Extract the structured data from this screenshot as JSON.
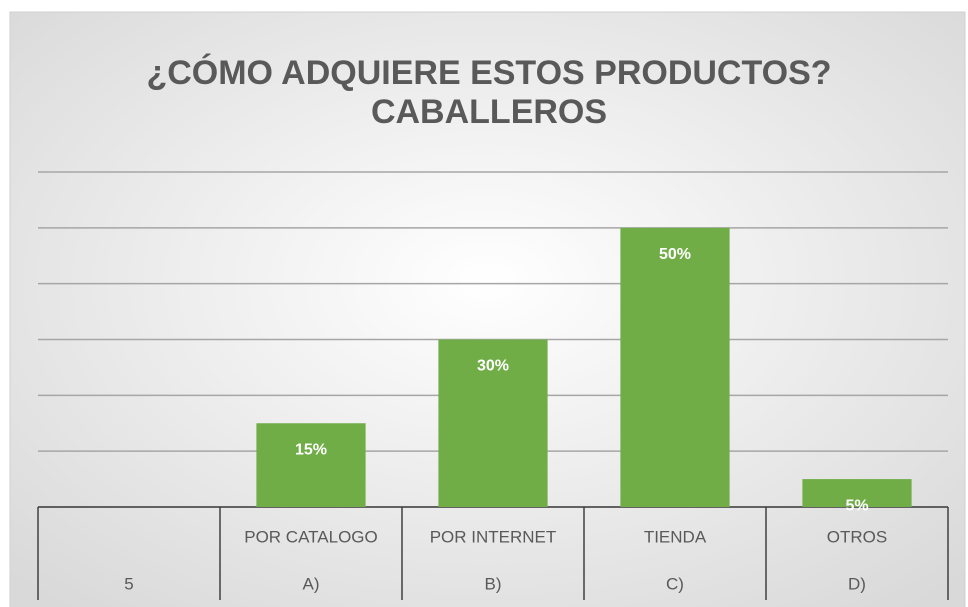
{
  "chart_data": {
    "type": "bar",
    "title": [
      "¿CÓMO ADQUIERE ESTOS PRODUCTOS?",
      "CABALLEROS"
    ],
    "categories": [
      null,
      "POR CATALOGO",
      "POR INTERNET",
      "TIENDA",
      "OTROS"
    ],
    "outer_categories": [
      "5",
      "A)",
      "B)",
      "C)",
      "D)"
    ],
    "values": [
      null,
      15,
      30,
      50,
      5
    ],
    "value_labels": [
      null,
      "15%",
      "30%",
      "50%",
      "5%"
    ],
    "color": "#70ad47",
    "ylim": [
      0,
      60
    ],
    "yticks": [
      0,
      10,
      20,
      30,
      40,
      50,
      60
    ],
    "grid": true
  }
}
